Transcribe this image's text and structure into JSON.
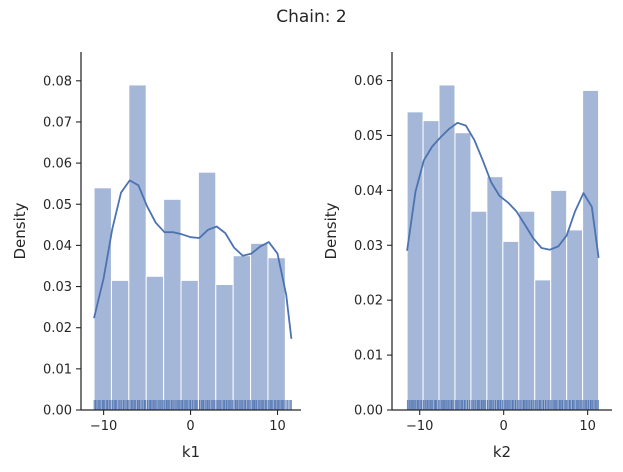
{
  "suptitle": "Chain: 2",
  "colors": {
    "bar": "#a5b7d8",
    "line": "#4c72b0",
    "rug": "#4c72b0",
    "axis": "#262626"
  },
  "chart_data": [
    {
      "type": "bar",
      "subtype": "histogram_with_kde_and_rug",
      "title": "",
      "xlabel": "k1",
      "ylabel": "Density",
      "xlim": [
        -12.6,
        12.7
      ],
      "ylim": [
        0,
        0.087
      ],
      "xticks": [
        -10,
        0,
        10
      ],
      "xtick_labels": [
        "−10",
        "0",
        "10"
      ],
      "yticks": [
        0,
        0.01,
        0.02,
        0.03,
        0.04,
        0.05,
        0.06,
        0.07,
        0.08
      ],
      "ytick_labels": [
        "0.00",
        "0.01",
        "0.02",
        "0.03",
        "0.04",
        "0.05",
        "0.06",
        "0.07",
        "0.08"
      ],
      "bins": {
        "edges": [
          -11.1,
          -9.1,
          -7.1,
          -5.1,
          -3.1,
          -1.1,
          0.9,
          2.9,
          4.9,
          6.9,
          8.9,
          10.9
        ],
        "values": [
          0.054,
          0.0315,
          0.079,
          0.0325,
          0.0512,
          0.0315,
          0.0578,
          0.0305,
          0.0375,
          0.0405,
          0.037
        ]
      },
      "kde": {
        "x": [
          -11.1,
          -10.0,
          -9.0,
          -8.0,
          -7.0,
          -6.0,
          -5.0,
          -4.0,
          -3.0,
          -2.0,
          -1.0,
          0.0,
          1.0,
          2.0,
          3.0,
          4.0,
          5.0,
          6.0,
          7.0,
          8.0,
          9.0,
          10.0,
          11.0,
          11.6
        ],
        "y": [
          0.0223,
          0.032,
          0.044,
          0.0528,
          0.0558,
          0.0546,
          0.0495,
          0.0455,
          0.0432,
          0.0432,
          0.0427,
          0.042,
          0.0418,
          0.0438,
          0.0446,
          0.043,
          0.0395,
          0.0375,
          0.038,
          0.0397,
          0.0408,
          0.038,
          0.028,
          0.0173
        ]
      },
      "rug_range": [
        -11.1,
        11.6
      ]
    },
    {
      "type": "bar",
      "subtype": "histogram_with_kde_and_rug",
      "title": "",
      "xlabel": "k2",
      "ylabel": "Density",
      "xlim": [
        -13.3,
        12.9
      ],
      "ylim": [
        0,
        0.0652
      ],
      "xticks": [
        -10,
        0,
        10
      ],
      "xtick_labels": [
        "−10",
        "0",
        "10"
      ],
      "yticks": [
        0,
        0.01,
        0.02,
        0.03,
        0.04,
        0.05,
        0.06
      ],
      "ytick_labels": [
        "0.00",
        "0.01",
        "0.02",
        "0.03",
        "0.04",
        "0.05",
        "0.06"
      ],
      "bins": {
        "edges": [
          -11.5,
          -9.6,
          -7.7,
          -5.8,
          -3.9,
          -2.0,
          -0.1,
          1.8,
          3.7,
          5.6,
          7.5,
          9.4,
          11.3
        ],
        "values": [
          0.0543,
          0.0527,
          0.0592,
          0.0505,
          0.0362,
          0.0425,
          0.0307,
          0.0362,
          0.0237,
          0.04,
          0.0328,
          0.0582
        ]
      },
      "kde": {
        "x": [
          -11.5,
          -10.5,
          -9.5,
          -8.5,
          -7.5,
          -6.5,
          -5.5,
          -4.5,
          -3.5,
          -2.5,
          -1.5,
          -0.5,
          0.5,
          1.5,
          2.5,
          3.5,
          4.5,
          5.5,
          6.5,
          7.5,
          8.5,
          9.5,
          10.5,
          11.3
        ],
        "y": [
          0.029,
          0.0398,
          0.0455,
          0.048,
          0.0497,
          0.0512,
          0.0523,
          0.0518,
          0.0492,
          0.0455,
          0.0415,
          0.039,
          0.0378,
          0.0362,
          0.0338,
          0.0313,
          0.0295,
          0.0292,
          0.0298,
          0.0318,
          0.0362,
          0.0395,
          0.037,
          0.0277
        ]
      },
      "rug_range": [
        -11.5,
        11.3
      ]
    }
  ]
}
